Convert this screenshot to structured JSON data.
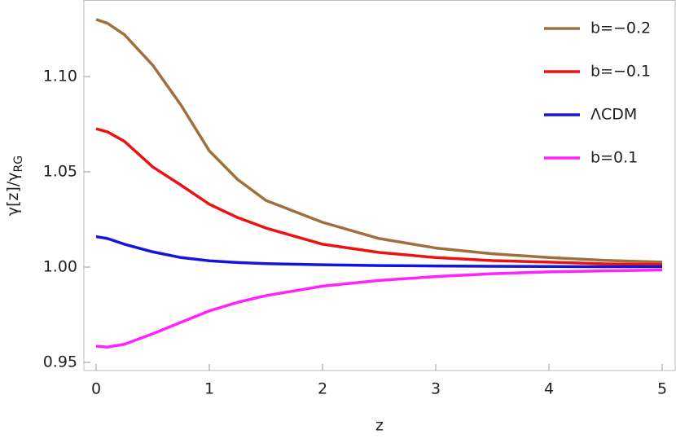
{
  "chart_data": {
    "type": "line",
    "x_label": "z",
    "y_label": [
      "γ[z]/γ",
      "RG"
    ],
    "x": [
      0,
      0.1,
      0.25,
      0.5,
      0.75,
      1,
      1.25,
      1.5,
      2,
      2.5,
      3,
      3.5,
      4,
      4.5,
      5
    ],
    "series": [
      {
        "name": "b=−0.2",
        "color": "#a0703c",
        "values": [
          1.13,
          1.128,
          1.122,
          1.106,
          1.085,
          1.061,
          1.046,
          1.035,
          1.0235,
          1.015,
          1.01,
          1.007,
          1.005,
          1.0035,
          1.0026
        ]
      },
      {
        "name": "b=−0.1",
        "color": "#ee1111",
        "values": [
          1.0726,
          1.071,
          1.066,
          1.0526,
          1.043,
          1.033,
          1.026,
          1.0205,
          1.012,
          1.0077,
          1.005,
          1.0034,
          1.0026,
          1.0017,
          1.0013
        ]
      },
      {
        "name": "ΛCDM",
        "color": "#1414dd",
        "values": [
          1.016,
          1.015,
          1.012,
          1.008,
          1.005,
          1.0033,
          1.0024,
          1.0018,
          1.0012,
          1.0008,
          1.0006,
          1.0004,
          1.0003,
          1.0002,
          1.0002
        ]
      },
      {
        "name": "b=0.1",
        "color": "#ff22ff",
        "values": [
          0.9585,
          0.958,
          0.9595,
          0.965,
          0.971,
          0.977,
          0.9815,
          0.985,
          0.99,
          0.993,
          0.995,
          0.9965,
          0.9975,
          0.998,
          0.9985
        ]
      }
    ],
    "xlim": [
      -0.108,
      5.115
    ],
    "ylim": [
      0.9457,
      1.1402
    ],
    "xticks": [
      0,
      1,
      2,
      3,
      4,
      5
    ],
    "yticks": [
      {
        "value": 0.95,
        "label": "0.95"
      },
      {
        "value": 1.0,
        "label": "1.00"
      },
      {
        "value": 1.05,
        "label": "1.05"
      },
      {
        "value": 1.1,
        "label": "1.10"
      }
    ],
    "legend": "top-right",
    "grid": false
  }
}
